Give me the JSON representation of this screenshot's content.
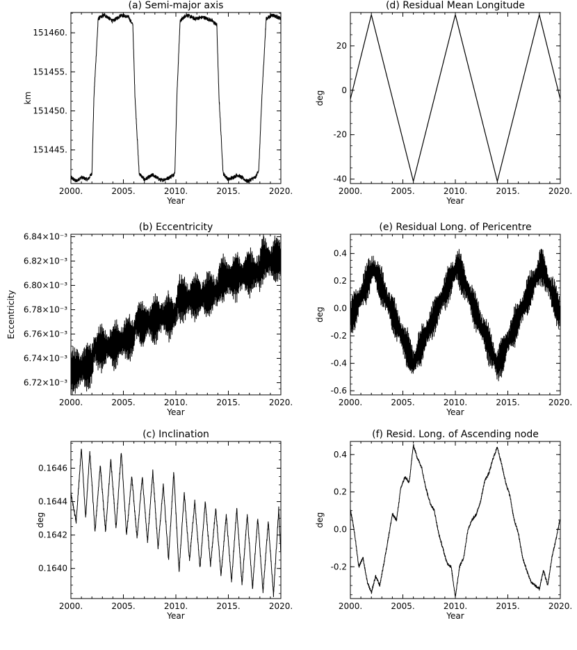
{
  "chart_data": [
    {
      "type": "line",
      "title": "(a) Semi-major axis",
      "xlabel": "Year",
      "ylabel": "km",
      "xlim": [
        2000,
        2020
      ],
      "ylim": [
        151440.7,
        151462.6
      ],
      "x_ticks": [
        "2000.",
        "2005.",
        "2010.",
        "2015.",
        "2020."
      ],
      "y_ticks": [
        151445,
        151450,
        151455,
        151460
      ],
      "y_tick_labels": [
        "151445.",
        "151450.",
        "151455.",
        "151460."
      ],
      "grid": false,
      "series": [
        {
          "x": [
            2000.0,
            2000.5,
            2001.0,
            2001.6,
            2002.0,
            2002.2,
            2002.6,
            2003.2,
            2004.0,
            2004.8,
            2005.5,
            2005.9,
            2006.1,
            2006.5,
            2007.0,
            2007.8,
            2008.6,
            2009.3,
            2009.9,
            2010.1,
            2010.4,
            2011.0,
            2011.8,
            2012.6,
            2013.4,
            2013.9,
            2014.1,
            2014.5,
            2015.0,
            2015.9,
            2016.8,
            2017.6,
            2017.9,
            2018.2,
            2018.6,
            2019.2,
            2020.0
          ],
          "y": [
            151441.5,
            151441.0,
            151441.5,
            151441.2,
            151442.0,
            151452.0,
            151461.8,
            151462.3,
            151461.5,
            151462.3,
            151462.0,
            151461.0,
            151452.0,
            151442.0,
            151441.2,
            151441.8,
            151441.1,
            151441.4,
            151442.0,
            151452.0,
            151461.5,
            151462.3,
            151461.8,
            151462.0,
            151461.6,
            151461.0,
            151452.0,
            151442.0,
            151441.2,
            151441.8,
            151441.0,
            151441.5,
            151442.5,
            151452.0,
            151461.8,
            151462.3,
            151461.8
          ],
          "noise": 0.25
        }
      ]
    },
    {
      "type": "line",
      "title": "(d) Residual Mean Longitude",
      "xlabel": "Year",
      "ylabel": "deg",
      "xlim": [
        2000,
        2020
      ],
      "ylim": [
        -42,
        35
      ],
      "x_ticks": [
        "2000.",
        "2005.",
        "2010.",
        "2015.",
        "2020."
      ],
      "y_ticks": [
        -40,
        -20,
        0,
        20
      ],
      "y_tick_labels": [
        "-40",
        "-20",
        "0",
        "20"
      ],
      "grid": false,
      "series": [
        {
          "x": [
            2000.0,
            2002.0,
            2006.0,
            2010.0,
            2014.0,
            2018.0,
            2020.0
          ],
          "y": [
            -4,
            34,
            -41,
            34,
            -41,
            34,
            -4
          ],
          "noise": 0
        }
      ]
    },
    {
      "type": "line",
      "title": "(b) Eccentricity",
      "xlabel": "Year",
      "ylabel": "Eccentricity",
      "xlim": [
        2000,
        2020
      ],
      "ylim": [
        0.00671,
        0.006842
      ],
      "x_ticks": [
        "2000.",
        "2005.",
        "2010.",
        "2015.",
        "2020."
      ],
      "y_ticks": [
        0.00672,
        0.00674,
        0.00676,
        0.00678,
        0.0068,
        0.00682,
        0.00684
      ],
      "y_tick_labels": [
        "6.72×10⁻³",
        "6.74×10⁻³",
        "6.76×10⁻³",
        "6.78×10⁻³",
        "6.80×10⁻³",
        "6.82×10⁻³",
        "6.84×10⁻³"
      ],
      "grid": false,
      "series": [
        {
          "x": [
            2000.0,
            2001.0,
            2002.0,
            2002.2,
            2003.0,
            2004.0,
            2005.0,
            2006.0,
            2006.2,
            2007.0,
            2008.0,
            2009.0,
            2010.0,
            2010.2,
            2011.0,
            2012.0,
            2013.0,
            2014.0,
            2014.2,
            2015.0,
            2016.0,
            2017.0,
            2018.0,
            2018.2,
            2019.0,
            2020.0
          ],
          "y": [
            0.006728,
            0.006732,
            0.006735,
            0.006748,
            0.006748,
            0.00675,
            0.006755,
            0.006758,
            0.00677,
            0.006768,
            0.006772,
            0.006775,
            0.006775,
            0.00679,
            0.006788,
            0.00679,
            0.006792,
            0.006795,
            0.006805,
            0.006805,
            0.006808,
            0.00681,
            0.006812,
            0.006822,
            0.00682,
            0.006822
          ],
          "amplitude": 1.9e-05
        }
      ]
    },
    {
      "type": "line",
      "title": "(e) Residual Long. of Pericentre",
      "xlabel": "Year",
      "ylabel": "deg",
      "xlim": [
        2000,
        2020
      ],
      "ylim": [
        -0.63,
        0.54
      ],
      "x_ticks": [
        "2000.",
        "2005.",
        "2010.",
        "2015.",
        "2020."
      ],
      "y_ticks": [
        -0.6,
        -0.4,
        -0.2,
        0.0,
        0.2,
        0.4
      ],
      "y_tick_labels": [
        "-0.6",
        "-0.4",
        "-0.2",
        "0.0",
        "0.2",
        "0.4"
      ],
      "grid": false,
      "series": [
        {
          "x": [
            2000.0,
            2002.2,
            2006.0,
            2010.2,
            2014.0,
            2018.2,
            2020.0
          ],
          "y": [
            -0.08,
            0.3,
            -0.4,
            0.32,
            -0.42,
            0.32,
            -0.05
          ],
          "amplitude": 0.14
        }
      ]
    },
    {
      "type": "line",
      "title": "(c) Inclination",
      "xlabel": "Year",
      "ylabel": "deg",
      "xlim": [
        2000,
        2020
      ],
      "ylim": [
        0.16382,
        0.16476
      ],
      "x_ticks": [
        "2000.",
        "2005.",
        "2010.",
        "2015.",
        "2020."
      ],
      "y_ticks": [
        0.164,
        0.1642,
        0.1644,
        0.1646
      ],
      "y_tick_labels": [
        "0.1640",
        "0.1642",
        "0.1644",
        "0.1646"
      ],
      "grid": false,
      "series": [
        {
          "x": [
            2000.0,
            2000.5,
            2001.0,
            2001.4,
            2001.8,
            2002.3,
            2002.8,
            2003.3,
            2003.8,
            2004.3,
            2004.8,
            2005.3,
            2005.8,
            2006.3,
            2006.8,
            2007.3,
            2007.8,
            2008.3,
            2008.8,
            2009.3,
            2009.8,
            2010.3,
            2010.8,
            2011.3,
            2011.8,
            2012.3,
            2012.8,
            2013.3,
            2013.8,
            2014.3,
            2014.8,
            2015.3,
            2015.8,
            2016.3,
            2016.8,
            2017.3,
            2017.8,
            2018.3,
            2018.8,
            2019.3,
            2019.8,
            2020.0
          ],
          "y": [
            0.16445,
            0.16428,
            0.16472,
            0.1643,
            0.1647,
            0.16422,
            0.16462,
            0.16422,
            0.16465,
            0.16424,
            0.1647,
            0.1642,
            0.16455,
            0.16418,
            0.16455,
            0.16416,
            0.16458,
            0.16412,
            0.1645,
            0.16405,
            0.16458,
            0.16398,
            0.16445,
            0.16405,
            0.1644,
            0.164,
            0.1644,
            0.16402,
            0.16436,
            0.16396,
            0.16432,
            0.16392,
            0.16436,
            0.1639,
            0.16432,
            0.16388,
            0.1643,
            0.16386,
            0.16428,
            0.16384,
            0.16436,
            0.16408
          ],
          "noise": 1.2e-05
        }
      ]
    },
    {
      "type": "line",
      "title": "(f) Resid. Long. of Ascending node",
      "xlabel": "Year",
      "ylabel": "deg",
      "xlim": [
        2000,
        2020
      ],
      "ylim": [
        -0.37,
        0.47
      ],
      "x_ticks": [
        "2000.",
        "2005.",
        "2010.",
        "2015.",
        "2020."
      ],
      "y_ticks": [
        -0.2,
        0.0,
        0.2,
        0.4
      ],
      "y_tick_labels": [
        "-0.2",
        "0.0",
        "0.2",
        "0.4"
      ],
      "grid": false,
      "series": [
        {
          "x": [
            2000.0,
            2000.4,
            2000.8,
            2001.2,
            2001.6,
            2002.0,
            2002.4,
            2002.8,
            2003.2,
            2003.6,
            2004.0,
            2004.4,
            2004.8,
            2005.2,
            2005.6,
            2006.0,
            2006.4,
            2006.8,
            2007.2,
            2007.6,
            2008.0,
            2008.4,
            2008.8,
            2009.2,
            2009.6,
            2010.0,
            2010.4,
            2010.8,
            2011.2,
            2011.6,
            2012.0,
            2012.4,
            2012.8,
            2013.2,
            2013.6,
            2014.0,
            2014.4,
            2014.8,
            2015.2,
            2015.6,
            2016.0,
            2016.4,
            2016.8,
            2017.2,
            2017.6,
            2018.0,
            2018.4,
            2018.8,
            2019.2,
            2019.6,
            2020.0
          ],
          "y": [
            0.11,
            -0.02,
            -0.2,
            -0.15,
            -0.28,
            -0.34,
            -0.25,
            -0.3,
            -0.18,
            -0.05,
            0.08,
            0.05,
            0.22,
            0.28,
            0.25,
            0.45,
            0.38,
            0.33,
            0.22,
            0.14,
            0.1,
            -0.02,
            -0.1,
            -0.18,
            -0.2,
            -0.36,
            -0.2,
            -0.15,
            0.0,
            0.05,
            0.08,
            0.15,
            0.26,
            0.3,
            0.38,
            0.44,
            0.35,
            0.25,
            0.18,
            0.05,
            -0.02,
            -0.15,
            -0.22,
            -0.28,
            -0.3,
            -0.32,
            -0.22,
            -0.3,
            -0.15,
            -0.05,
            0.06
          ],
          "noise": 0.008
        }
      ]
    }
  ]
}
